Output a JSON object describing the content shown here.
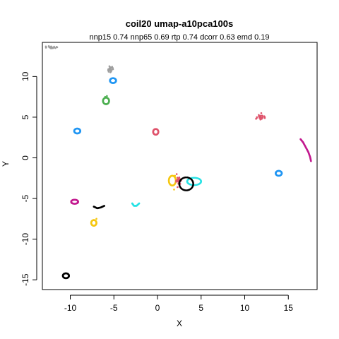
{
  "chart_data": {
    "type": "scatter",
    "title": "coil20 umap-a10pca100s",
    "subtitle": "nnp15 0.74 nnp65 0.69 rtp 0.74 dcorr 0.63 emd 0.19",
    "xlabel": "X",
    "ylabel": "Y",
    "xlim": [
      -13.2,
      18.3
    ],
    "ylim": [
      -16.2,
      14.2
    ],
    "xticks": [
      -10,
      -5,
      0,
      5,
      10,
      15
    ],
    "yticks": [
      -15,
      -10,
      -5,
      0,
      5,
      10
    ],
    "grid": false,
    "clusters": [
      {
        "color": "#9e9e9e",
        "shape": "blob",
        "cx": -12.2,
        "cy": 13.6,
        "rx": 0.7,
        "ry": 0.15,
        "points": [
          [
            -12.8,
            13.7
          ],
          [
            -12.4,
            13.6
          ],
          [
            -12.0,
            13.5
          ],
          [
            -11.7,
            13.5
          ]
        ]
      },
      {
        "color": "#9e9e9e",
        "shape": "blob",
        "cx": -5.4,
        "cy": 10.9,
        "rx": 0.3,
        "ry": 0.4,
        "points": [
          [
            -5.6,
            10.6
          ],
          [
            -5.4,
            10.9
          ],
          [
            -5.2,
            11.2
          ],
          [
            -5.5,
            10.8
          ]
        ]
      },
      {
        "color": "#2196f3",
        "shape": "ring",
        "cx": -5.1,
        "cy": 9.5,
        "rx": 0.35,
        "ry": 0.3,
        "points": []
      },
      {
        "color": "#4caf50",
        "shape": "ring",
        "cx": -5.9,
        "cy": 7.0,
        "rx": 0.35,
        "ry": 0.4,
        "points": [
          [
            -6.0,
            7.5
          ],
          [
            -5.8,
            7.6
          ]
        ]
      },
      {
        "color": "#2196f3",
        "shape": "ring",
        "cx": -9.2,
        "cy": 3.3,
        "rx": 0.35,
        "ry": 0.3,
        "points": []
      },
      {
        "color": "#df536b",
        "shape": "ring",
        "cx": -0.2,
        "cy": 3.2,
        "rx": 0.3,
        "ry": 0.35,
        "points": []
      },
      {
        "color": "#df536b",
        "shape": "blob",
        "cx": 11.8,
        "cy": 5.0,
        "rx": 0.5,
        "ry": 0.3,
        "points": [
          [
            11.3,
            4.8
          ],
          [
            11.7,
            5.0
          ],
          [
            12.0,
            5.2
          ],
          [
            11.9,
            5.5
          ],
          [
            12.3,
            4.9
          ]
        ]
      },
      {
        "color": "#c2188e",
        "shape": "arc",
        "points": [
          [
            16.4,
            2.3
          ],
          [
            16.7,
            1.9
          ],
          [
            17.0,
            1.3
          ],
          [
            17.3,
            0.7
          ],
          [
            17.5,
            0.1
          ],
          [
            17.6,
            -0.4
          ]
        ]
      },
      {
        "color": "#2196f3",
        "shape": "ring",
        "cx": 13.9,
        "cy": -1.9,
        "rx": 0.35,
        "ry": 0.3,
        "points": []
      },
      {
        "color": "#f5c710",
        "shape": "ring",
        "cx": 1.7,
        "cy": -2.8,
        "rx": 0.4,
        "ry": 0.6,
        "points": [
          [
            1.9,
            -3.9
          ],
          [
            2.0,
            -2.2
          ]
        ]
      },
      {
        "color": "#df536b",
        "shape": "blob",
        "cx": 2.4,
        "cy": -2.8,
        "rx": 0.3,
        "ry": 0.4,
        "points": [
          [
            2.2,
            -2.0
          ],
          [
            2.5,
            -2.4
          ],
          [
            2.6,
            -3.2
          ],
          [
            2.3,
            -3.6
          ]
        ]
      },
      {
        "color": "#28e2e5",
        "shape": "ring",
        "cx": 4.2,
        "cy": -2.9,
        "rx": 0.8,
        "ry": 0.45,
        "points": []
      },
      {
        "color": "#000000",
        "shape": "ring",
        "cx": 3.3,
        "cy": -3.2,
        "rx": 0.8,
        "ry": 0.8,
        "points": []
      },
      {
        "color": "#c2188e",
        "shape": "ring",
        "cx": -9.5,
        "cy": -5.4,
        "rx": 0.4,
        "ry": 0.25,
        "points": []
      },
      {
        "color": "#28e2e5",
        "shape": "arc",
        "points": [
          [
            -2.9,
            -5.6
          ],
          [
            -2.7,
            -5.9
          ],
          [
            -2.4,
            -5.9
          ],
          [
            -2.1,
            -5.6
          ]
        ]
      },
      {
        "color": "#000000",
        "shape": "arc",
        "points": [
          [
            -7.3,
            -6.0
          ],
          [
            -6.9,
            -6.2
          ],
          [
            -6.5,
            -6.1
          ],
          [
            -6.1,
            -5.9
          ]
        ]
      },
      {
        "color": "#f5c710",
        "shape": "ring",
        "cx": -7.3,
        "cy": -8.0,
        "rx": 0.3,
        "ry": 0.35,
        "points": [
          [
            -7.0,
            -7.5
          ]
        ]
      },
      {
        "color": "#000000",
        "shape": "ring",
        "cx": -10.5,
        "cy": -14.5,
        "rx": 0.35,
        "ry": 0.3,
        "points": []
      }
    ]
  }
}
